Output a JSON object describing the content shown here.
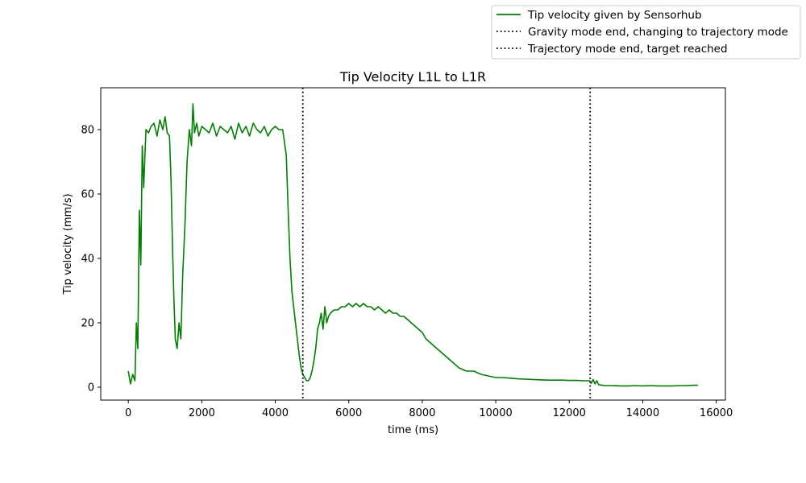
{
  "chart_data": {
    "type": "line",
    "title": "Tip Velocity L1L to L1R",
    "xlabel": "time (ms)",
    "ylabel": "Tip velocity (mm/s)",
    "xlim": [
      -750,
      16250
    ],
    "ylim": [
      -4,
      93
    ],
    "xticks": [
      0,
      2000,
      4000,
      6000,
      8000,
      10000,
      12000,
      14000,
      16000
    ],
    "xtick_labels": [
      "0",
      "2000",
      "4000",
      "6000",
      "8000",
      "10000",
      "12000",
      "14000",
      "16000"
    ],
    "yticks": [
      0,
      20,
      40,
      60,
      80
    ],
    "ytick_labels": [
      "0",
      "20",
      "40",
      "60",
      "80"
    ],
    "grid": false,
    "legend_position": "top-right, outside plot",
    "series": [
      {
        "name": "Tip velocity given by Sensorhub",
        "color": "#008000",
        "style": "solid",
        "x": [
          0,
          60,
          120,
          180,
          220,
          260,
          300,
          340,
          380,
          420,
          480,
          550,
          620,
          700,
          780,
          860,
          940,
          1000,
          1060,
          1120,
          1160,
          1200,
          1240,
          1280,
          1330,
          1380,
          1430,
          1480,
          1540,
          1600,
          1660,
          1720,
          1760,
          1800,
          1860,
          1920,
          2000,
          2100,
          2200,
          2300,
          2400,
          2500,
          2600,
          2700,
          2800,
          2900,
          3000,
          3100,
          3200,
          3300,
          3400,
          3500,
          3600,
          3700,
          3800,
          3900,
          4000,
          4100,
          4200,
          4300,
          4350,
          4400,
          4450,
          4500,
          4550,
          4600,
          4650,
          4700,
          4750,
          4800,
          4850,
          4900,
          4950,
          5000,
          5050,
          5100,
          5150,
          5200,
          5250,
          5300,
          5350,
          5400,
          5450,
          5500,
          5600,
          5700,
          5800,
          5900,
          6000,
          6100,
          6200,
          6300,
          6400,
          6500,
          6600,
          6700,
          6800,
          6900,
          7000,
          7100,
          7200,
          7300,
          7400,
          7500,
          7600,
          7700,
          7800,
          7900,
          8000,
          8100,
          8200,
          8300,
          8400,
          8500,
          8600,
          8700,
          8800,
          8900,
          9000,
          9200,
          9400,
          9600,
          9800,
          10000,
          10200,
          10400,
          10600,
          10800,
          11000,
          11200,
          11400,
          11600,
          11800,
          12000,
          12200,
          12400,
          12550,
          12600,
          12650,
          12700,
          12750,
          12800,
          12900,
          13000,
          13200,
          13400,
          13600,
          13800,
          14000,
          14200,
          14400,
          14600,
          14800,
          15000,
          15200,
          15400,
          15500
        ],
        "values": [
          5,
          1,
          4,
          2,
          20,
          12,
          55,
          38,
          75,
          62,
          80,
          79,
          81,
          82,
          78,
          83,
          80,
          84,
          79,
          78,
          65,
          45,
          28,
          15,
          12,
          20,
          15,
          35,
          50,
          70,
          80,
          75,
          88,
          79,
          82,
          78,
          81,
          80,
          79,
          82,
          78,
          81,
          80,
          79,
          81,
          77,
          82,
          79,
          81,
          78,
          82,
          80,
          79,
          81,
          78,
          80,
          81,
          80,
          80,
          72,
          55,
          40,
          30,
          25,
          20,
          15,
          10,
          6,
          4,
          3,
          2,
          2,
          3,
          5,
          8,
          12,
          18,
          20,
          23,
          18,
          25,
          20,
          22,
          23,
          24,
          24,
          25,
          25,
          26,
          25,
          26,
          25,
          26,
          25,
          25,
          24,
          25,
          24,
          23,
          24,
          23,
          23,
          22,
          22,
          21,
          20,
          19,
          18,
          17,
          15,
          14,
          13,
          12,
          11,
          10,
          9,
          8,
          7,
          6,
          5,
          5,
          4,
          3.5,
          3,
          3,
          2.8,
          2.6,
          2.5,
          2.4,
          2.3,
          2.2,
          2.2,
          2.2,
          2.1,
          2.1,
          2.0,
          2.0,
          1.2,
          2.4,
          1.0,
          2.0,
          0.8,
          0.6,
          0.5,
          0.5,
          0.4,
          0.4,
          0.5,
          0.4,
          0.5,
          0.4,
          0.4,
          0.4,
          0.5,
          0.5,
          0.6,
          0.6
        ]
      }
    ],
    "vlines": [
      {
        "name": "Gravity mode end, changing to trajectory mode",
        "x": 4750,
        "color": "#000000",
        "style": "dotted"
      },
      {
        "name": "Trajectory mode end, target reached",
        "x": 12570,
        "color": "#000000",
        "style": "dotted"
      }
    ]
  }
}
